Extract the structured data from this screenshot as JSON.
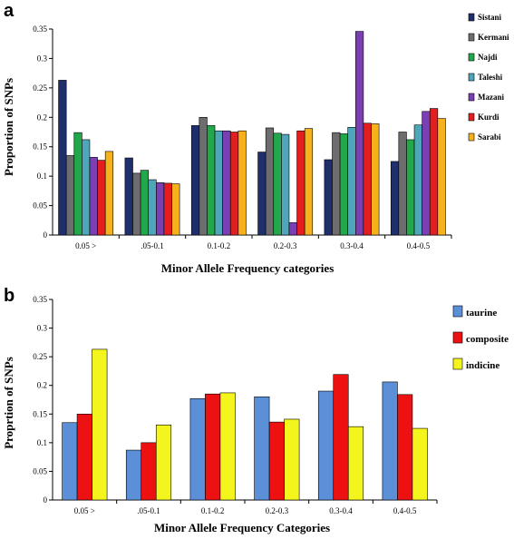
{
  "chart_data": [
    {
      "type": "bar",
      "panel_label": "a",
      "title": "",
      "xlabel": "Minor Allele Frequency categories",
      "ylabel": "Proportion of SNPs",
      "ylim": [
        0,
        0.35
      ],
      "yticks": [
        "0",
        "0.05",
        "0.1",
        "0.15",
        "0.2",
        "0.25",
        "0.3",
        "0.35"
      ],
      "grid": false,
      "legend_position": "right",
      "categories": [
        "0.05 >",
        ".05-0.1",
        "0.1-0.2",
        "0.2-0.3",
        "0.3-0.4",
        "0.4-0.5"
      ],
      "series": [
        {
          "name": "Sistani",
          "color": "#1f2f6b",
          "values": [
            0.263,
            0.131,
            0.186,
            0.141,
            0.128,
            0.125
          ]
        },
        {
          "name": "Kermani",
          "color": "#6d6d6d",
          "values": [
            0.135,
            0.105,
            0.2,
            0.182,
            0.174,
            0.175
          ]
        },
        {
          "name": "Najdi",
          "color": "#22a84a",
          "values": [
            0.174,
            0.11,
            0.186,
            0.173,
            0.172,
            0.162
          ]
        },
        {
          "name": "Taleshi",
          "color": "#4fa6b8",
          "values": [
            0.162,
            0.094,
            0.177,
            0.171,
            0.183,
            0.187
          ]
        },
        {
          "name": "Mazani",
          "color": "#7b3fb4",
          "values": [
            0.132,
            0.089,
            0.177,
            0.021,
            0.346,
            0.21
          ]
        },
        {
          "name": "Kurdi",
          "color": "#e41e1e",
          "values": [
            0.127,
            0.088,
            0.175,
            0.177,
            0.19,
            0.215
          ]
        },
        {
          "name": "Sarabi",
          "color": "#f7b21b",
          "values": [
            0.142,
            0.087,
            0.177,
            0.181,
            0.189,
            0.198
          ]
        }
      ]
    },
    {
      "type": "bar",
      "panel_label": "b",
      "title": "",
      "xlabel": "Minor Allele Frequency Categories",
      "ylabel": "Proprtion of SNPs",
      "ylim": [
        0,
        0.35
      ],
      "yticks": [
        "0",
        "0.05",
        "0.1",
        "0.15",
        "0.2",
        "0.25",
        "0.3",
        "0.35"
      ],
      "grid": false,
      "legend_position": "right",
      "categories": [
        "0.05 >",
        ".05-0.1",
        "0.1-0.2",
        "0.2-0.3",
        "0.3-0.4",
        "0.4-0.5"
      ],
      "series": [
        {
          "name": "taurine",
          "color": "#5b8fd8",
          "values": [
            0.135,
            0.087,
            0.177,
            0.18,
            0.19,
            0.206
          ]
        },
        {
          "name": "composite",
          "color": "#ee1111",
          "values": [
            0.15,
            0.1,
            0.185,
            0.136,
            0.219,
            0.184
          ]
        },
        {
          "name": "indicine",
          "color": "#f5f51e",
          "values": [
            0.263,
            0.131,
            0.187,
            0.141,
            0.128,
            0.125
          ]
        }
      ]
    }
  ]
}
